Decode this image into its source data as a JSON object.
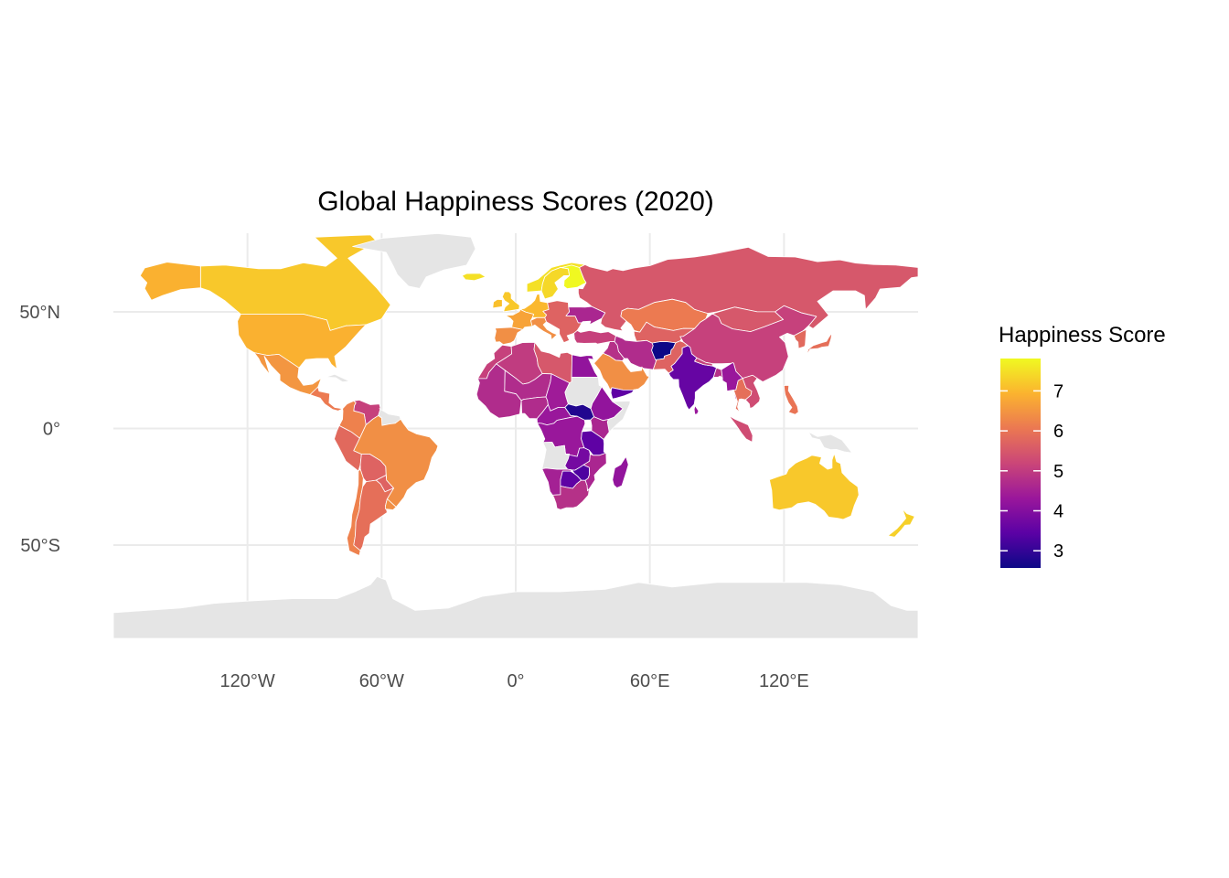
{
  "title": "Global Happiness Scores (2020)",
  "map": {
    "projection": "equirectangular",
    "x_ticks": [
      {
        "lon": -120,
        "label": "120°W"
      },
      {
        "lon": -60,
        "label": "60°W"
      },
      {
        "lon": 0,
        "label": "0°"
      },
      {
        "lon": 60,
        "label": "60°E"
      },
      {
        "lon": 120,
        "label": "120°E"
      }
    ],
    "y_ticks": [
      {
        "lat": 50,
        "label": "50°N"
      },
      {
        "lat": 0,
        "label": "0°"
      },
      {
        "lat": -50,
        "label": "50°S"
      }
    ],
    "no_data_color": "#e5e5e5"
  },
  "legend": {
    "title": "Happiness Score",
    "min": 2.57,
    "max": 7.81,
    "ticks": [
      {
        "value": 7,
        "label": "7"
      },
      {
        "value": 6,
        "label": "6"
      },
      {
        "value": 5,
        "label": "5"
      },
      {
        "value": 4,
        "label": "4"
      },
      {
        "value": 3,
        "label": "3"
      }
    ],
    "palette": "plasma",
    "colors": [
      "#0d0887",
      "#5b01a5",
      "#9a179b",
      "#cb4678",
      "#eb7852",
      "#fbb32f",
      "#f0f921"
    ]
  },
  "regions": [
    {
      "name": "Canada",
      "score": 7.2
    },
    {
      "name": "Alaska",
      "score": 6.9
    },
    {
      "name": "Greenland",
      "score": null
    },
    {
      "name": "United States",
      "score": 6.9
    },
    {
      "name": "Mexico",
      "score": 6.5
    },
    {
      "name": "Central America",
      "score": 6.1
    },
    {
      "name": "Cuba",
      "score": null
    },
    {
      "name": "Venezuela",
      "score": 5.1
    },
    {
      "name": "Colombia",
      "score": 6.2
    },
    {
      "name": "Guyana",
      "score": null
    },
    {
      "name": "Peru",
      "score": 5.8
    },
    {
      "name": "Brazil",
      "score": 6.4
    },
    {
      "name": "Bolivia",
      "score": 5.7
    },
    {
      "name": "Paraguay",
      "score": 5.7
    },
    {
      "name": "Chile",
      "score": 6.2
    },
    {
      "name": "Argentina",
      "score": 5.9
    },
    {
      "name": "Uruguay",
      "score": 6.4
    },
    {
      "name": "Iceland",
      "score": 7.5
    },
    {
      "name": "United Kingdom",
      "score": 7.2
    },
    {
      "name": "Ireland",
      "score": 7.1
    },
    {
      "name": "Norway",
      "score": 7.5
    },
    {
      "name": "Sweden",
      "score": 7.4
    },
    {
      "name": "Finland",
      "score": 7.8
    },
    {
      "name": "Western Europe",
      "score": 7.0
    },
    {
      "name": "Spain",
      "score": 6.4
    },
    {
      "name": "France",
      "score": 6.7
    },
    {
      "name": "Italy",
      "score": 6.4
    },
    {
      "name": "Eastern Europe",
      "score": 5.7
    },
    {
      "name": "Ukraine",
      "score": 4.6
    },
    {
      "name": "Turkey",
      "score": 5.1
    },
    {
      "name": "Russia",
      "score": 5.5
    },
    {
      "name": "Kazakhstan",
      "score": 6.1
    },
    {
      "name": "Central Asia",
      "score": 5.7
    },
    {
      "name": "Mongolia",
      "score": 5.5
    },
    {
      "name": "China",
      "score": 5.1
    },
    {
      "name": "Korea",
      "score": 5.8
    },
    {
      "name": "Japan",
      "score": 5.9
    },
    {
      "name": "Iran",
      "score": 4.7
    },
    {
      "name": "Iraq",
      "score": 4.8
    },
    {
      "name": "Saudi Arabia",
      "score": 6.4
    },
    {
      "name": "Yemen",
      "score": 3.5
    },
    {
      "name": "Afghanistan",
      "score": 2.57
    },
    {
      "name": "Pakistan",
      "score": 5.7
    },
    {
      "name": "India",
      "score": 3.6
    },
    {
      "name": "Nepal",
      "score": 5.1
    },
    {
      "name": "Bangladesh",
      "score": 4.8
    },
    {
      "name": "Myanmar",
      "score": 4.3
    },
    {
      "name": "Thailand",
      "score": 5.9
    },
    {
      "name": "Southeast Asia",
      "score": 5.3
    },
    {
      "name": "Sri Lanka",
      "score": 4.3
    },
    {
      "name": "Indonesia",
      "score": 5.3
    },
    {
      "name": "Philippines",
      "score": 6.0
    },
    {
      "name": "Papua New Guinea",
      "score": null
    },
    {
      "name": "Australia",
      "score": 7.2
    },
    {
      "name": "New Zealand",
      "score": 7.3
    },
    {
      "name": "Morocco",
      "score": 5.1
    },
    {
      "name": "Algeria",
      "score": 5.0
    },
    {
      "name": "Libya",
      "score": 5.5
    },
    {
      "name": "Egypt",
      "score": 4.2
    },
    {
      "name": "Sudan",
      "score": null
    },
    {
      "name": "West Africa",
      "score": 4.7
    },
    {
      "name": "Sahel",
      "score": 4.7
    },
    {
      "name": "Nigeria",
      "score": 4.7
    },
    {
      "name": "Chad",
      "score": 4.4
    },
    {
      "name": "South Sudan",
      "score": 2.8
    },
    {
      "name": "Ethiopia",
      "score": 4.2
    },
    {
      "name": "Somalia",
      "score": null
    },
    {
      "name": "Kenya",
      "score": 4.6
    },
    {
      "name": "Central Africa",
      "score": 4.3
    },
    {
      "name": "DR Congo",
      "score": 4.3
    },
    {
      "name": "Angola",
      "score": null
    },
    {
      "name": "Tanzania",
      "score": 3.5
    },
    {
      "name": "Zambia",
      "score": 3.8
    },
    {
      "name": "Zimbabwe",
      "score": 3.3
    },
    {
      "name": "Namibia",
      "score": 4.5
    },
    {
      "name": "Botswana",
      "score": 3.5
    },
    {
      "name": "Mozambique",
      "score": 4.6
    },
    {
      "name": "South Africa",
      "score": 4.8
    },
    {
      "name": "Madagascar",
      "score": 4.2
    },
    {
      "name": "Antarctica",
      "score": null
    }
  ]
}
